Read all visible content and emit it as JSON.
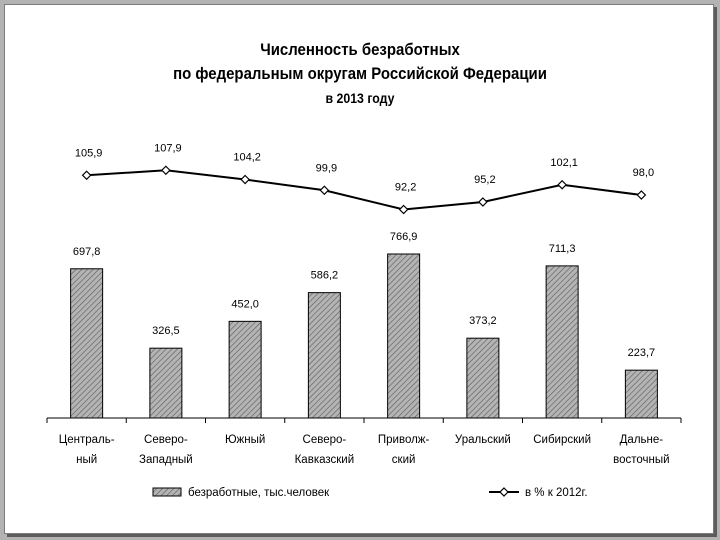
{
  "chart_data": {
    "type": "bar",
    "title": [
      "Численность безработных",
      "по федеральным округам Российской Федерации",
      "в 2013 году"
    ],
    "categories": [
      [
        "Централь-",
        "ный"
      ],
      [
        "Северо-",
        "Западный"
      ],
      [
        "Южный"
      ],
      [
        "Северо-",
        "Кавказский"
      ],
      [
        "Приволж-",
        "ский"
      ],
      [
        "Уральский"
      ],
      [
        "Сибирский"
      ],
      [
        "Дальне-",
        "восточный"
      ]
    ],
    "series": [
      {
        "name": "безработные, тыс.человек",
        "type": "bar",
        "values": [
          697.8,
          326.5,
          452.0,
          586.2,
          766.9,
          373.2,
          711.3,
          223.7
        ],
        "labels": [
          "697,8",
          "326,5",
          "452,0",
          "586,2",
          "766,9",
          "373,2",
          "711,3",
          "223,7"
        ]
      },
      {
        "name": "в % к 2012г.",
        "type": "line",
        "values": [
          105.9,
          107.9,
          104.2,
          99.9,
          92.2,
          95.2,
          102.1,
          98.0
        ],
        "labels": [
          "105,9",
          "107,9",
          "104,2",
          "99,9",
          "92,2",
          "95,2",
          "102,1",
          "98,0"
        ]
      }
    ],
    "grid": false,
    "legend": "bottom",
    "colors": {
      "bar_fill": "#b0b0b0",
      "bar_hatch": "#555555",
      "line": "#000000",
      "marker": "#ffffff"
    }
  }
}
